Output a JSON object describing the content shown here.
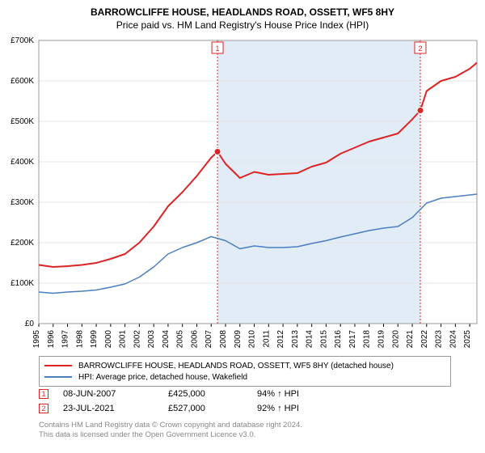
{
  "title_line1": "BARROWCLIFFE HOUSE, HEADLANDS ROAD, OSSETT, WF5 8HY",
  "title_line2": "Price paid vs. HM Land Registry's House Price Index (HPI)",
  "chart": {
    "type": "line",
    "background_color": "#ffffff",
    "grid_color": "#e4e4e4",
    "border_color": "#9a9a9a",
    "shade_color": "#e2ecf7",
    "marker_border": "#dc2424",
    "marker_fill_1": "#ffffff",
    "marker_fill_2": "#ffffff",
    "axis_font_size": 10,
    "x_min": 1995,
    "x_max": 2025.5,
    "x_ticks": [
      1995,
      1996,
      1997,
      1998,
      1999,
      2000,
      2001,
      2002,
      2003,
      2004,
      2005,
      2006,
      2007,
      2008,
      2009,
      2010,
      2011,
      2012,
      2013,
      2014,
      2015,
      2016,
      2017,
      2018,
      2019,
      2020,
      2021,
      2022,
      2023,
      2024,
      2025
    ],
    "y_min": 0,
    "y_max": 700000,
    "y_ticks": [
      0,
      100000,
      200000,
      300000,
      400000,
      500000,
      600000,
      700000
    ],
    "y_tick_labels": [
      "£0",
      "£100K",
      "£200K",
      "£300K",
      "£400K",
      "£500K",
      "£600K",
      "£700K"
    ],
    "shade_x_start": 2007.44,
    "shade_x_end": 2021.56,
    "series": [
      {
        "name": "property",
        "color": "#dc2424",
        "width": 2,
        "points": [
          [
            1995,
            145000
          ],
          [
            1996,
            140000
          ],
          [
            1997,
            142000
          ],
          [
            1998,
            145000
          ],
          [
            1999,
            150000
          ],
          [
            2000,
            160000
          ],
          [
            2001,
            172000
          ],
          [
            2002,
            200000
          ],
          [
            2003,
            240000
          ],
          [
            2004,
            290000
          ],
          [
            2005,
            325000
          ],
          [
            2006,
            365000
          ],
          [
            2007,
            410000
          ],
          [
            2007.44,
            425000
          ],
          [
            2008,
            395000
          ],
          [
            2009,
            360000
          ],
          [
            2010,
            375000
          ],
          [
            2011,
            368000
          ],
          [
            2012,
            370000
          ],
          [
            2013,
            372000
          ],
          [
            2014,
            388000
          ],
          [
            2015,
            398000
          ],
          [
            2016,
            420000
          ],
          [
            2017,
            435000
          ],
          [
            2018,
            450000
          ],
          [
            2019,
            460000
          ],
          [
            2020,
            470000
          ],
          [
            2021,
            505000
          ],
          [
            2021.56,
            527000
          ],
          [
            2022,
            575000
          ],
          [
            2023,
            600000
          ],
          [
            2024,
            610000
          ],
          [
            2025,
            630000
          ],
          [
            2025.5,
            645000
          ]
        ]
      },
      {
        "name": "hpi",
        "color": "#4a7ec0",
        "width": 1.5,
        "points": [
          [
            1995,
            78000
          ],
          [
            1996,
            75000
          ],
          [
            1997,
            78000
          ],
          [
            1998,
            80000
          ],
          [
            1999,
            83000
          ],
          [
            2000,
            90000
          ],
          [
            2001,
            98000
          ],
          [
            2002,
            115000
          ],
          [
            2003,
            140000
          ],
          [
            2004,
            172000
          ],
          [
            2005,
            188000
          ],
          [
            2006,
            200000
          ],
          [
            2007,
            215000
          ],
          [
            2008,
            205000
          ],
          [
            2009,
            185000
          ],
          [
            2010,
            192000
          ],
          [
            2011,
            188000
          ],
          [
            2012,
            188000
          ],
          [
            2013,
            190000
          ],
          [
            2014,
            198000
          ],
          [
            2015,
            205000
          ],
          [
            2016,
            214000
          ],
          [
            2017,
            222000
          ],
          [
            2018,
            230000
          ],
          [
            2019,
            236000
          ],
          [
            2020,
            240000
          ],
          [
            2021,
            262000
          ],
          [
            2022,
            298000
          ],
          [
            2023,
            310000
          ],
          [
            2024,
            314000
          ],
          [
            2025,
            318000
          ],
          [
            2025.5,
            320000
          ]
        ]
      }
    ],
    "markers": [
      {
        "num": "1",
        "x": 2007.44,
        "y": 425000,
        "label_y": 698000,
        "line_color": "#dc2424"
      },
      {
        "num": "2",
        "x": 2021.56,
        "y": 527000,
        "label_y": 698000,
        "line_color": "#dc2424"
      }
    ]
  },
  "legend": [
    {
      "color": "#dc2424",
      "label": "BARROWCLIFFE HOUSE, HEADLANDS ROAD, OSSETT, WF5 8HY (detached house)"
    },
    {
      "color": "#4a7ec0",
      "label": "HPI: Average price, detached house, Wakefield"
    }
  ],
  "transactions": [
    {
      "num": "1",
      "color": "#dc2424",
      "date": "08-JUN-2007",
      "price": "£425,000",
      "hpi": "94% ↑ HPI"
    },
    {
      "num": "2",
      "color": "#dc2424",
      "date": "23-JUL-2021",
      "price": "£527,000",
      "hpi": "92% ↑ HPI"
    }
  ],
  "attribution_line1": "Contains HM Land Registry data © Crown copyright and database right 2024.",
  "attribution_line2": "This data is licensed under the Open Government Licence v3.0."
}
